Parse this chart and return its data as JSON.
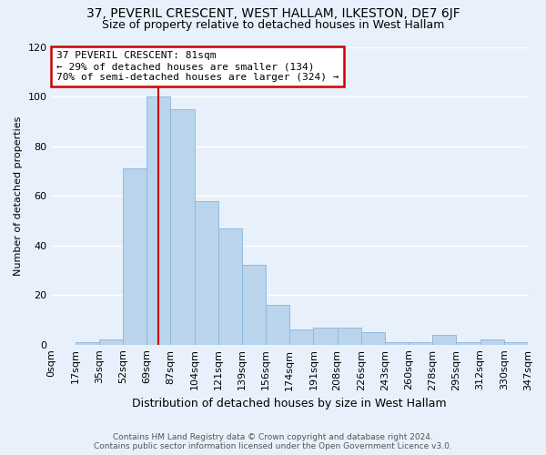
{
  "title": "37, PEVERIL CRESCENT, WEST HALLAM, ILKESTON, DE7 6JF",
  "subtitle": "Size of property relative to detached houses in West Hallam",
  "xlabel": "Distribution of detached houses by size in West Hallam",
  "ylabel": "Number of detached properties",
  "footer_line1": "Contains HM Land Registry data © Crown copyright and database right 2024.",
  "footer_line2": "Contains public sector information licensed under the Open Government Licence v3.0.",
  "bin_labels": [
    "0sqm",
    "17sqm",
    "35sqm",
    "52sqm",
    "69sqm",
    "87sqm",
    "104sqm",
    "121sqm",
    "139sqm",
    "156sqm",
    "174sqm",
    "191sqm",
    "208sqm",
    "226sqm",
    "243sqm",
    "260sqm",
    "278sqm",
    "295sqm",
    "312sqm",
    "330sqm",
    "347sqm"
  ],
  "bar_values": [
    0,
    1,
    2,
    71,
    100,
    95,
    58,
    47,
    32,
    16,
    6,
    7,
    7,
    5,
    1,
    1,
    4,
    1,
    2,
    1
  ],
  "bar_color": "#bad4ed",
  "bar_edge_color": "#89b4d9",
  "annotation_title": "37 PEVERIL CRESCENT: 81sqm",
  "annotation_line2": "← 29% of detached houses are smaller (134)",
  "annotation_line3": "70% of semi-detached houses are larger (324) →",
  "annotation_box_color": "#ffffff",
  "annotation_box_edge": "#cc0000",
  "vline_color": "#cc0000",
  "vline_x": 4.5,
  "ylim": [
    0,
    120
  ],
  "yticks": [
    0,
    20,
    40,
    60,
    80,
    100,
    120
  ],
  "background_color": "#e8f1fb",
  "grid_color": "#ffffff",
  "title_fontsize": 10,
  "subtitle_fontsize": 9,
  "xlabel_fontsize": 9,
  "ylabel_fontsize": 8,
  "footer_fontsize": 6.5
}
